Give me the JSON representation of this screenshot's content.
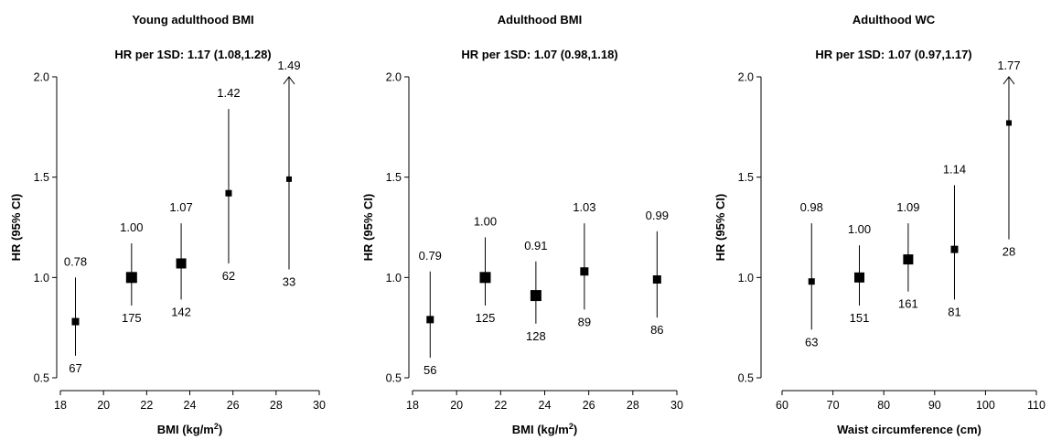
{
  "chart_data": [
    {
      "type": "scatter",
      "title": "Young adulthood BMI",
      "subtitle": "HR per 1SD: 1.17 (1.08,1.28)",
      "xlabel_main": "BMI (kg/m",
      "xlabel_sup": "2",
      "xlabel_tail": ")",
      "ylabel": "HR (95% CI)",
      "xlim": [
        18,
        30
      ],
      "ylim": [
        0.5,
        2.0
      ],
      "xticks": [
        18,
        20,
        22,
        24,
        26,
        28,
        30
      ],
      "yticks": [
        0.5,
        1.0,
        1.5,
        2.0
      ],
      "ytick_labels": [
        "0.5",
        "1.0",
        "1.5",
        "2.0"
      ],
      "points": [
        {
          "x": 18.7,
          "hr": 0.78,
          "lower": 0.61,
          "upper": 1.0,
          "hr_label": "0.78",
          "n_label": "67",
          "size": 8
        },
        {
          "x": 21.3,
          "hr": 1.0,
          "lower": 0.86,
          "upper": 1.17,
          "hr_label": "1.00",
          "n_label": "175",
          "size": 12
        },
        {
          "x": 23.6,
          "hr": 1.07,
          "lower": 0.89,
          "upper": 1.27,
          "hr_label": "1.07",
          "n_label": "142",
          "size": 11
        },
        {
          "x": 25.8,
          "hr": 1.42,
          "lower": 1.07,
          "upper": 1.84,
          "hr_label": "1.42",
          "n_label": "62",
          "size": 7
        },
        {
          "x": 28.6,
          "hr": 1.49,
          "lower": 1.04,
          "upper": 2.0,
          "hr_label": "1.49",
          "n_label": "33",
          "size": 6,
          "arrow": true,
          "hr_label_top": true
        }
      ]
    },
    {
      "type": "scatter",
      "title": "Adulthood BMI",
      "subtitle": "HR per 1SD: 1.07 (0.98,1.18)",
      "xlabel_main": "BMI (kg/m",
      "xlabel_sup": "2",
      "xlabel_tail": ")",
      "ylabel": "HR (95% CI)",
      "xlim": [
        18,
        30
      ],
      "ylim": [
        0.5,
        2.0
      ],
      "xticks": [
        18,
        20,
        22,
        24,
        26,
        28,
        30
      ],
      "yticks": [
        0.5,
        1.0,
        1.5,
        2.0
      ],
      "ytick_labels": [
        "0.5",
        "1.0",
        "1.5",
        "2.0"
      ],
      "points": [
        {
          "x": 18.8,
          "hr": 0.79,
          "lower": 0.6,
          "upper": 1.03,
          "hr_label": "0.79",
          "n_label": "56",
          "size": 8
        },
        {
          "x": 21.3,
          "hr": 1.0,
          "lower": 0.86,
          "upper": 1.2,
          "hr_label": "1.00",
          "n_label": "125",
          "size": 12
        },
        {
          "x": 23.6,
          "hr": 0.91,
          "lower": 0.77,
          "upper": 1.08,
          "hr_label": "0.91",
          "n_label": "128",
          "size": 12
        },
        {
          "x": 25.8,
          "hr": 1.03,
          "lower": 0.84,
          "upper": 1.27,
          "hr_label": "1.03",
          "n_label": "89",
          "size": 9
        },
        {
          "x": 29.1,
          "hr": 0.99,
          "lower": 0.8,
          "upper": 1.23,
          "hr_label": "0.99",
          "n_label": "86",
          "size": 9
        }
      ]
    },
    {
      "type": "scatter",
      "title": "Adulthood WC",
      "subtitle": "HR per 1SD: 1.07 (0.97,1.17)",
      "xlabel_main": "Waist circumference (cm)",
      "xlabel_sup": "",
      "xlabel_tail": "",
      "ylabel": "HR (95% CI)",
      "xlim": [
        60,
        110
      ],
      "ylim": [
        0.5,
        2.0
      ],
      "xticks": [
        60,
        70,
        80,
        90,
        100,
        110
      ],
      "yticks": [
        0.5,
        1.0,
        1.5,
        2.0
      ],
      "ytick_labels": [
        "0.5",
        "1.0",
        "1.5",
        "2.0"
      ],
      "points": [
        {
          "x": 65.8,
          "hr": 0.98,
          "lower": 0.74,
          "upper": 1.27,
          "hr_label": "0.98",
          "n_label": "63",
          "size": 7
        },
        {
          "x": 75.2,
          "hr": 1.0,
          "lower": 0.86,
          "upper": 1.16,
          "hr_label": "1.00",
          "n_label": "151",
          "size": 11
        },
        {
          "x": 84.8,
          "hr": 1.09,
          "lower": 0.93,
          "upper": 1.27,
          "hr_label": "1.09",
          "n_label": "161",
          "size": 11
        },
        {
          "x": 93.9,
          "hr": 1.14,
          "lower": 0.89,
          "upper": 1.46,
          "hr_label": "1.14",
          "n_label": "81",
          "size": 8
        },
        {
          "x": 104.6,
          "hr": 1.77,
          "lower": 1.19,
          "upper": 2.0,
          "hr_label": "1.77",
          "n_label": "28",
          "size": 6,
          "arrow": true,
          "hr_label_top": true
        }
      ]
    }
  ]
}
